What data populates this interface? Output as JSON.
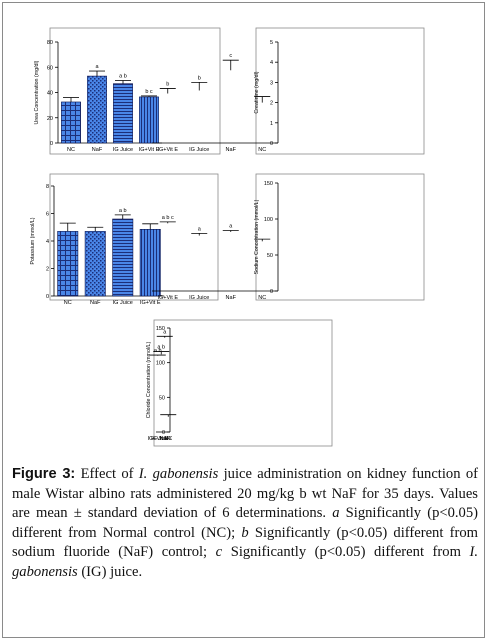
{
  "figure": {
    "label": "Figure 3:",
    "caption_runs": [
      {
        "t": " Effect of ",
        "i": false
      },
      {
        "t": "I. gabonensis",
        "i": true
      },
      {
        "t": " juice administration on kidney function of male Wistar albino rats administered 20 mg/kg b wt NaF for 35 days. Values are mean ± standard deviation of 6 determinations. ",
        "i": false
      },
      {
        "t": "a",
        "i": true
      },
      {
        "t": " Significantly (p<0.05) different from Normal control (NC); ",
        "i": false
      },
      {
        "t": "b",
        "i": true
      },
      {
        "t": " Significantly (p<0.05) different from sodium fluoride (NaF) control; ",
        "i": false
      },
      {
        "t": "c",
        "i": true
      },
      {
        "t": " Significantly (p<0.05) different from ",
        "i": false
      },
      {
        "t": "I. gabonensis",
        "i": true
      },
      {
        "t": " (IG) juice.",
        "i": false
      }
    ]
  },
  "colors": {
    "bar_fill": "#4a86e8",
    "bar_pattern": "#1c2e78",
    "axis": "#000000",
    "frame": "#8a8a8a"
  },
  "chart_data": [
    {
      "type": "bar",
      "ylabel": "Urea Concentration (mg/dl)",
      "ylim": [
        0,
        80
      ],
      "yticks": [
        0,
        20,
        40,
        60,
        80
      ],
      "categories": [
        "NC",
        "NaF",
        "IG Juice",
        "IG+Vit E"
      ],
      "values": [
        32.5,
        53,
        47,
        36.5
      ],
      "errors": [
        3.5,
        4,
        2.5,
        0.8
      ],
      "annotations": [
        "",
        "a",
        "a b",
        "b c"
      ],
      "patterns": [
        "grid",
        "dots",
        "hlines",
        "vlines"
      ]
    },
    {
      "type": "bar",
      "ylabel": "Creatinine (mg/dl)",
      "ylim": [
        0,
        5
      ],
      "yticks": [
        0,
        1,
        2,
        3,
        4,
        5
      ],
      "categories": [
        "NC",
        "NaF",
        "IG Juice",
        "IG+Vit E"
      ],
      "values": [
        2.0,
        3.6,
        2.6,
        2.45
      ],
      "errors": [
        0.3,
        0.5,
        0.4,
        0.25
      ],
      "annotations": [
        "",
        "c",
        "b",
        "b"
      ],
      "patterns": [
        "grid",
        "dots",
        "hlines",
        "vlines"
      ]
    },
    {
      "type": "bar",
      "ylabel": "Potassium (mmol/L)",
      "ylim": [
        0,
        8
      ],
      "yticks": [
        0,
        2,
        4,
        6,
        8
      ],
      "categories": [
        "NC",
        "NaF",
        "IG Juice",
        "IG+Vit E"
      ],
      "values": [
        4.7,
        4.7,
        5.6,
        4.85
      ],
      "errors": [
        0.6,
        0.3,
        0.3,
        0.4
      ],
      "annotations": [
        "",
        "",
        "a b",
        ""
      ],
      "patterns": [
        "grid",
        "dots",
        "hlines",
        "vlines"
      ]
    },
    {
      "type": "bar",
      "ylabel": "Sodium Concentration (mmol/L)",
      "ylim": [
        0,
        150
      ],
      "yticks": [
        0,
        50,
        100,
        150
      ],
      "categories": [
        "NC",
        "NaF",
        "IG Juice",
        "IG+Vit E"
      ],
      "values": [
        69,
        82,
        77,
        94
      ],
      "errors": [
        3,
        2,
        3,
        2
      ],
      "annotations": [
        "",
        "a",
        "a",
        "a b c"
      ],
      "patterns": [
        "grid",
        "dots",
        "hlines",
        "vlines"
      ]
    },
    {
      "type": "bar",
      "ylabel": "Chloride Concentration (mmol/L)",
      "ylim": [
        0,
        150
      ],
      "yticks": [
        0,
        50,
        100,
        150
      ],
      "categories": [
        "NC",
        "NaF",
        "IG Juice",
        "IG+Vit E"
      ],
      "values": [
        22,
        136,
        112,
        110
      ],
      "errors": [
        3,
        2,
        4,
        1
      ],
      "annotations": [
        "",
        "a",
        "a b",
        "a b"
      ],
      "patterns": [
        "grid",
        "dots",
        "hlines",
        "vlines"
      ]
    }
  ]
}
